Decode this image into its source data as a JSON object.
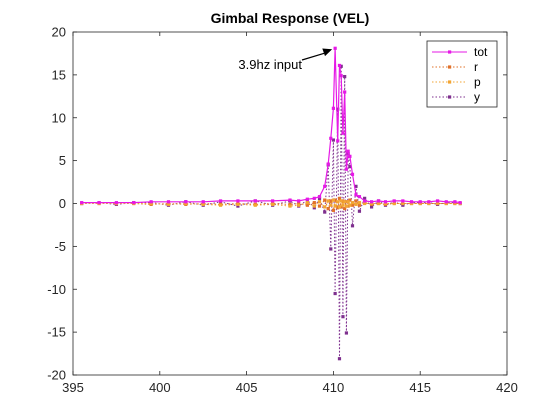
{
  "chart_data": {
    "type": "line",
    "title": "Gimbal Response (VEL)",
    "xlabel": "",
    "ylabel": "",
    "xlim": [
      395,
      420
    ],
    "ylim": [
      -20,
      20
    ],
    "xticks": [
      395,
      400,
      405,
      410,
      415,
      420
    ],
    "yticks": [
      -20,
      -15,
      -10,
      -5,
      0,
      5,
      10,
      15,
      20
    ],
    "grid": false,
    "legend_position": "top-right",
    "annotation": {
      "text": "3.9hz input",
      "points_to": [
        410.1,
        18.1
      ]
    },
    "series": [
      {
        "name": "tot",
        "color": "#e619e6",
        "line_style": "solid",
        "x": [
          395.5,
          396.5,
          397.5,
          398.5,
          399.5,
          400.5,
          401.5,
          402.5,
          403.5,
          404.5,
          405.5,
          406.5,
          407.5,
          408.0,
          408.5,
          408.9,
          409.2,
          409.5,
          409.7,
          409.85,
          410.0,
          410.1,
          410.25,
          410.35,
          410.45,
          410.55,
          410.65,
          410.75,
          410.85,
          410.95,
          411.1,
          411.3,
          411.5,
          411.8,
          412.2,
          412.6,
          413.0,
          413.5,
          414.0,
          414.5,
          415.0,
          415.5,
          416.0,
          416.5,
          417.0,
          417.3
        ],
        "y": [
          0.1,
          0.1,
          0.1,
          0.1,
          0.2,
          0.2,
          0.2,
          0.2,
          0.3,
          0.3,
          0.3,
          0.3,
          0.4,
          0.3,
          0.5,
          0.6,
          0.8,
          2.0,
          4.6,
          7.6,
          11.1,
          18.1,
          7.3,
          16.1,
          14.9,
          8.2,
          13.0,
          4.0,
          6.1,
          5.5,
          3.4,
          1.0,
          0.8,
          0.3,
          0.2,
          0.3,
          0.2,
          0.3,
          0.3,
          0.2,
          0.2,
          0.2,
          0.3,
          0.2,
          0.2,
          0.1
        ]
      },
      {
        "name": "r",
        "color": "#e0712a",
        "line_style": "dotted",
        "x": [
          395.5,
          396.5,
          397.5,
          398.5,
          399.5,
          400.5,
          401.5,
          402.5,
          403.5,
          404.5,
          405.5,
          406.5,
          407.5,
          408.0,
          408.5,
          408.9,
          409.2,
          409.5,
          409.7,
          409.85,
          410.0,
          410.1,
          410.25,
          410.35,
          410.45,
          410.55,
          410.65,
          410.75,
          410.85,
          410.95,
          411.1,
          411.3,
          411.5,
          411.8,
          412.2,
          412.6,
          413.0,
          413.5,
          414.0,
          414.5,
          415.0,
          415.5,
          416.0,
          416.5,
          417.0,
          417.3
        ],
        "y": [
          0.0,
          0.0,
          0.0,
          0.0,
          -0.1,
          0.0,
          -0.1,
          0.0,
          -0.1,
          0.0,
          -0.1,
          0.0,
          -0.1,
          0.0,
          -0.2,
          0.1,
          -0.3,
          0.4,
          -0.6,
          0.3,
          -0.8,
          0.4,
          -0.5,
          0.6,
          -0.4,
          0.3,
          -0.6,
          0.2,
          -0.3,
          0.4,
          -0.2,
          0.3,
          -0.2,
          0.1,
          -0.1,
          0.0,
          -0.1,
          0.0,
          0.0,
          0.0,
          0.0,
          0.0,
          0.0,
          0.0,
          0.0,
          0.0
        ]
      },
      {
        "name": "p",
        "color": "#f2a533",
        "line_style": "dotted",
        "x": [
          395.5,
          396.5,
          397.5,
          398.5,
          399.5,
          400.5,
          401.5,
          402.5,
          403.5,
          404.5,
          405.5,
          406.5,
          407.5,
          408.0,
          408.5,
          408.9,
          409.2,
          409.5,
          409.7,
          409.85,
          410.0,
          410.1,
          410.25,
          410.35,
          410.45,
          410.55,
          410.65,
          410.75,
          410.85,
          410.95,
          411.1,
          411.3,
          411.5,
          411.8,
          412.2,
          412.6,
          413.0,
          413.5,
          414.0,
          414.5,
          415.0,
          415.5,
          416.0,
          416.5,
          417.0,
          417.3
        ],
        "y": [
          0.0,
          0.0,
          0.0,
          0.0,
          0.0,
          -0.1,
          0.0,
          -0.1,
          -0.2,
          -0.1,
          -0.2,
          -0.1,
          -0.3,
          -0.2,
          0.1,
          -0.3,
          0.2,
          -0.4,
          0.3,
          -0.2,
          0.4,
          -0.3,
          0.2,
          -0.4,
          0.3,
          -0.2,
          0.2,
          -0.3,
          0.2,
          -0.2,
          0.1,
          -0.1,
          0.1,
          0.0,
          0.0,
          0.0,
          0.0,
          0.0,
          0.0,
          0.0,
          0.0,
          0.0,
          0.0,
          0.0,
          0.0,
          0.0
        ]
      },
      {
        "name": "y",
        "color": "#7e2f8e",
        "line_style": "dotted",
        "x": [
          395.5,
          396.5,
          397.5,
          398.5,
          399.5,
          400.5,
          401.5,
          402.5,
          403.5,
          404.5,
          405.5,
          406.5,
          407.5,
          408.0,
          408.5,
          408.9,
          409.2,
          409.5,
          409.7,
          409.85,
          410.0,
          410.1,
          410.25,
          410.35,
          410.45,
          410.55,
          410.65,
          410.75,
          410.85,
          410.95,
          411.1,
          411.3,
          411.5,
          411.8,
          412.2,
          412.6,
          413.0,
          413.5,
          414.0,
          414.5,
          415.0,
          415.5,
          416.0,
          416.5,
          417.0,
          417.3
        ],
        "y": [
          0.0,
          0.1,
          -0.1,
          0.1,
          0.1,
          -0.2,
          0.2,
          -0.2,
          0.2,
          -0.3,
          0.3,
          -0.2,
          0.3,
          -0.3,
          0.4,
          -0.5,
          0.6,
          -1.0,
          4.5,
          -5.3,
          7.4,
          -10.5,
          11.0,
          -18.1,
          16.0,
          -13.2,
          14.8,
          -15.1,
          5.8,
          4.3,
          -2.6,
          2.0,
          -0.9,
          0.6,
          -0.4,
          0.3,
          -0.2,
          0.2,
          -0.2,
          0.1,
          0.1,
          0.1,
          -0.1,
          0.1,
          0.1,
          0.0
        ]
      }
    ]
  }
}
